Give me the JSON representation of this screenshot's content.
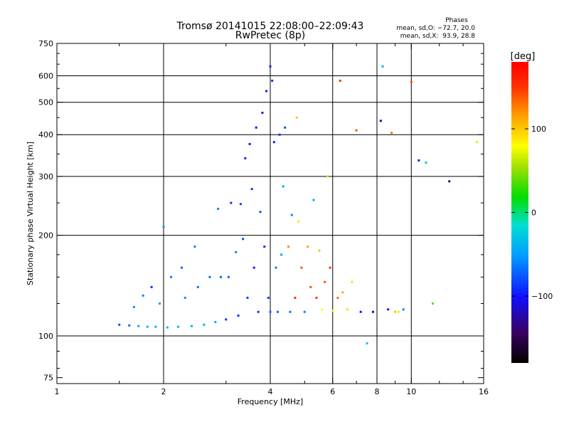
{
  "chart_data": {
    "type": "scatter",
    "title": "Tromsø 20141015 22:08:00–22:09:43",
    "subtitle": "RwPretec (8p)",
    "xlabel": "Frequency [MHz]",
    "ylabel": "Stationary phase Virtual Height [km]",
    "x_scale": "log",
    "y_scale": "log",
    "xlim": [
      1,
      16
    ],
    "ylim": [
      72,
      750
    ],
    "xticks": [
      1,
      2,
      4,
      6,
      8,
      10,
      16
    ],
    "xtick_labels": [
      "1",
      "2",
      "4",
      "6",
      "8",
      "10",
      "16"
    ],
    "x_minor_ticks": [
      1.5,
      3,
      5,
      7,
      9,
      12,
      14
    ],
    "yticks": [
      75,
      100,
      200,
      300,
      400,
      500,
      600,
      750
    ],
    "ytick_labels": [
      "75",
      "100",
      "200",
      "300",
      "400",
      "500",
      "600",
      "750"
    ],
    "y_minor_ticks": [
      80,
      90,
      125,
      150,
      175,
      250,
      350,
      450,
      550,
      650,
      700
    ],
    "x_gridlines": [
      2,
      4,
      6,
      8,
      10
    ],
    "y_gridlines": [
      100,
      200,
      300,
      400,
      500,
      600
    ],
    "grid": true,
    "stats_box": {
      "heading": "Phases",
      "line_o": "mean, sd,O: −72.7, 20.0",
      "line_x": "mean, sd,X:  93.9, 28.8"
    },
    "colorbar": {
      "label": "[deg]",
      "range": [
        -180,
        180
      ],
      "ticks": [
        100,
        0,
        -100
      ],
      "tick_labels": [
        "100",
        "0",
        "−100"
      ],
      "colormap": "rainbow"
    },
    "series": [
      {
        "values": [
          {
            "x": 1.5,
            "y": 108.0,
            "phase": -80
          },
          {
            "x": 1.6,
            "y": 107.5,
            "phase": -70
          },
          {
            "x": 1.65,
            "y": 122.0,
            "phase": -55
          },
          {
            "x": 1.7,
            "y": 107.0,
            "phase": -40
          },
          {
            "x": 1.75,
            "y": 132.0,
            "phase": -60
          },
          {
            "x": 1.8,
            "y": 106.5,
            "phase": -40
          },
          {
            "x": 1.85,
            "y": 140.0,
            "phase": -90
          },
          {
            "x": 1.9,
            "y": 106.5,
            "phase": -40
          },
          {
            "x": 1.95,
            "y": 125.0,
            "phase": -50
          },
          {
            "x": 2.0,
            "y": 212.0,
            "phase": -50
          },
          {
            "x": 2.05,
            "y": 106.0,
            "phase": -40
          },
          {
            "x": 2.1,
            "y": 150.0,
            "phase": -60
          },
          {
            "x": 2.2,
            "y": 106.5,
            "phase": -40
          },
          {
            "x": 2.25,
            "y": 160.0,
            "phase": -70
          },
          {
            "x": 2.3,
            "y": 130.0,
            "phase": -55
          },
          {
            "x": 2.4,
            "y": 107.0,
            "phase": -40
          },
          {
            "x": 2.45,
            "y": 185.0,
            "phase": -60
          },
          {
            "x": 2.5,
            "y": 140.0,
            "phase": -65
          },
          {
            "x": 2.6,
            "y": 108.0,
            "phase": -40
          },
          {
            "x": 2.7,
            "y": 150.0,
            "phase": -70
          },
          {
            "x": 2.8,
            "y": 110.0,
            "phase": -45
          },
          {
            "x": 2.85,
            "y": 240.0,
            "phase": -60
          },
          {
            "x": 2.9,
            "y": 150.0,
            "phase": -70
          },
          {
            "x": 3.0,
            "y": 112.0,
            "phase": -90
          },
          {
            "x": 3.05,
            "y": 150.0,
            "phase": -75
          },
          {
            "x": 3.1,
            "y": 250.0,
            "phase": -90
          },
          {
            "x": 3.2,
            "y": 178.0,
            "phase": -60
          },
          {
            "x": 3.25,
            "y": 115.0,
            "phase": -90
          },
          {
            "x": 3.3,
            "y": 248.0,
            "phase": -85
          },
          {
            "x": 3.35,
            "y": 195.0,
            "phase": -80
          },
          {
            "x": 3.4,
            "y": 340.0,
            "phase": -95
          },
          {
            "x": 3.45,
            "y": 130.0,
            "phase": -85
          },
          {
            "x": 3.5,
            "y": 375.0,
            "phase": -100
          },
          {
            "x": 3.55,
            "y": 275.0,
            "phase": -90
          },
          {
            "x": 3.6,
            "y": 160.0,
            "phase": -95
          },
          {
            "x": 3.65,
            "y": 420.0,
            "phase": -100
          },
          {
            "x": 3.7,
            "y": 118.0,
            "phase": -90
          },
          {
            "x": 3.75,
            "y": 235.0,
            "phase": -80
          },
          {
            "x": 3.8,
            "y": 465.0,
            "phase": -100
          },
          {
            "x": 3.85,
            "y": 185.0,
            "phase": -90
          },
          {
            "x": 3.9,
            "y": 540.0,
            "phase": -95
          },
          {
            "x": 3.95,
            "y": 130.0,
            "phase": -85
          },
          {
            "x": 4.0,
            "y": 640.0,
            "phase": -95
          },
          {
            "x": 4.0,
            "y": 118.0,
            "phase": -70
          },
          {
            "x": 4.05,
            "y": 580.0,
            "phase": -90
          },
          {
            "x": 4.1,
            "y": 380.0,
            "phase": -95
          },
          {
            "x": 4.15,
            "y": 160.0,
            "phase": -60
          },
          {
            "x": 4.2,
            "y": 118.0,
            "phase": -70
          },
          {
            "x": 4.25,
            "y": 400.0,
            "phase": -90
          },
          {
            "x": 4.3,
            "y": 175.0,
            "phase": -50
          },
          {
            "x": 4.35,
            "y": 280.0,
            "phase": -40
          },
          {
            "x": 4.4,
            "y": 420.0,
            "phase": -80
          },
          {
            "x": 4.5,
            "y": 185.0,
            "phase": 120
          },
          {
            "x": 4.55,
            "y": 118.0,
            "phase": -65
          },
          {
            "x": 4.6,
            "y": 230.0,
            "phase": -60
          },
          {
            "x": 4.7,
            "y": 130.0,
            "phase": 150
          },
          {
            "x": 4.75,
            "y": 450.0,
            "phase": 100
          },
          {
            "x": 4.8,
            "y": 220.0,
            "phase": 90
          },
          {
            "x": 4.9,
            "y": 160.0,
            "phase": 140
          },
          {
            "x": 5.0,
            "y": 118.0,
            "phase": -60
          },
          {
            "x": 5.1,
            "y": 185.0,
            "phase": 110
          },
          {
            "x": 5.2,
            "y": 140.0,
            "phase": 140
          },
          {
            "x": 5.3,
            "y": 255.0,
            "phase": -40
          },
          {
            "x": 5.4,
            "y": 130.0,
            "phase": 150
          },
          {
            "x": 5.5,
            "y": 180.0,
            "phase": 60
          },
          {
            "x": 5.6,
            "y": 120.0,
            "phase": 80
          },
          {
            "x": 5.7,
            "y": 145.0,
            "phase": 140
          },
          {
            "x": 5.8,
            "y": 300.0,
            "phase": 60
          },
          {
            "x": 5.9,
            "y": 160.0,
            "phase": 150
          },
          {
            "x": 6.0,
            "y": 119.0,
            "phase": 80
          },
          {
            "x": 6.2,
            "y": 130.0,
            "phase": 130
          },
          {
            "x": 6.3,
            "y": 580.0,
            "phase": 150
          },
          {
            "x": 6.4,
            "y": 135.0,
            "phase": 110
          },
          {
            "x": 6.6,
            "y": 120.0,
            "phase": 70
          },
          {
            "x": 6.8,
            "y": 145.0,
            "phase": 90
          },
          {
            "x": 7.0,
            "y": 412.0,
            "phase": 140
          },
          {
            "x": 7.2,
            "y": 118.0,
            "phase": -100
          },
          {
            "x": 7.5,
            "y": 95.0,
            "phase": -30
          },
          {
            "x": 7.8,
            "y": 118.0,
            "phase": -110
          },
          {
            "x": 8.2,
            "y": 440.0,
            "phase": -140
          },
          {
            "x": 8.3,
            "y": 640.0,
            "phase": -40
          },
          {
            "x": 8.6,
            "y": 120.0,
            "phase": -100
          },
          {
            "x": 8.8,
            "y": 405.0,
            "phase": 130
          },
          {
            "x": 9.0,
            "y": 118.0,
            "phase": 100
          },
          {
            "x": 9.2,
            "y": 118.0,
            "phase": 70
          },
          {
            "x": 9.5,
            "y": 120.0,
            "phase": -60
          },
          {
            "x": 10.0,
            "y": 575.0,
            "phase": 140
          },
          {
            "x": 10.5,
            "y": 335.0,
            "phase": -100
          },
          {
            "x": 11.0,
            "y": 330.0,
            "phase": -30
          },
          {
            "x": 11.5,
            "y": 125.0,
            "phase": 40
          },
          {
            "x": 12.8,
            "y": 290.0,
            "phase": -140
          },
          {
            "x": 15.3,
            "y": 380.0,
            "phase": 70
          }
        ]
      }
    ]
  }
}
